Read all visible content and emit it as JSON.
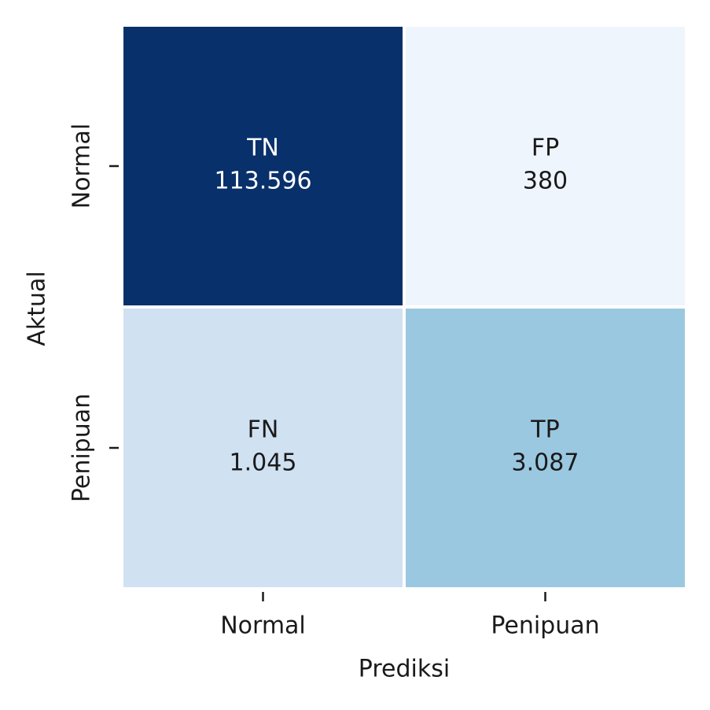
{
  "chart_data": {
    "type": "heatmap",
    "xlabel": "Prediksi",
    "ylabel": "Aktual",
    "x_categories": [
      "Normal",
      "Penipuan"
    ],
    "y_categories": [
      "Normal",
      "Penipuan"
    ],
    "cell_labels": [
      [
        "TN",
        "FP"
      ],
      [
        "FN",
        "TP"
      ]
    ],
    "values": [
      [
        113596,
        380
      ],
      [
        1045,
        3087
      ]
    ],
    "value_labels": [
      [
        "113.596",
        "380"
      ],
      [
        "1.045",
        "3.087"
      ]
    ],
    "colors": [
      [
        "#08306b",
        "#eff5fd"
      ],
      [
        "#d0e1f2",
        "#9ac8e0"
      ]
    ]
  }
}
